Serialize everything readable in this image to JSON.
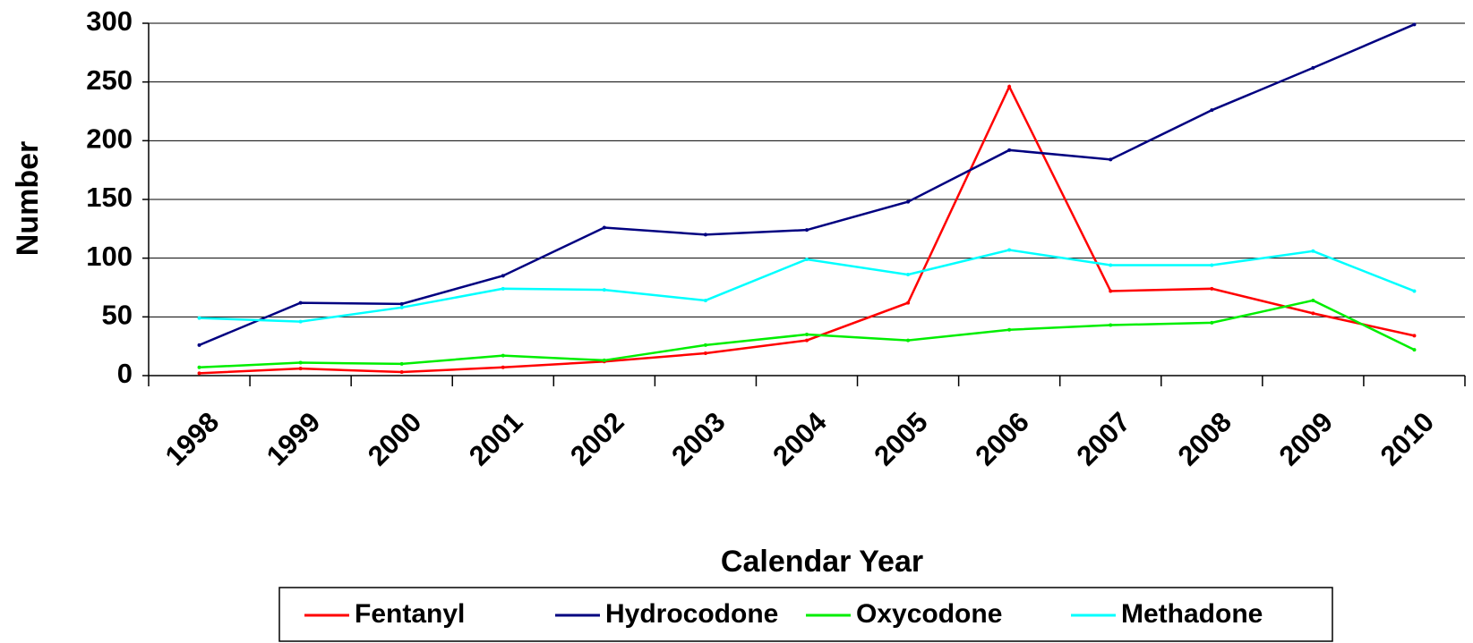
{
  "chart_data": {
    "type": "line",
    "x_label": "Calendar Year",
    "y_label": "Number",
    "categories": [
      "1998",
      "1999",
      "2000",
      "2001",
      "2002",
      "2003",
      "2004",
      "2005",
      "2006",
      "2007",
      "2008",
      "2009",
      "2010"
    ],
    "series": [
      {
        "name": "Fentanyl",
        "color": "#ff0000",
        "values": [
          2,
          6,
          3,
          7,
          12,
          19,
          30,
          62,
          246,
          72,
          74,
          53,
          34
        ]
      },
      {
        "name": "Hydrocodone",
        "color": "#000080",
        "values": [
          26,
          62,
          61,
          85,
          126,
          120,
          124,
          148,
          192,
          184,
          226,
          262,
          299
        ]
      },
      {
        "name": "Oxycodone",
        "color": "#00ee00",
        "values": [
          7,
          11,
          10,
          17,
          13,
          26,
          35,
          30,
          39,
          43,
          45,
          64,
          22
        ]
      },
      {
        "name": "Methadone",
        "color": "#00ffff",
        "values": [
          49,
          46,
          58,
          74,
          73,
          64,
          99,
          86,
          107,
          94,
          94,
          106,
          72
        ]
      }
    ],
    "ylim": [
      0,
      300
    ],
    "yticks": [
      0,
      50,
      100,
      150,
      200,
      250,
      300
    ],
    "grid": true,
    "legend": "bottom"
  }
}
